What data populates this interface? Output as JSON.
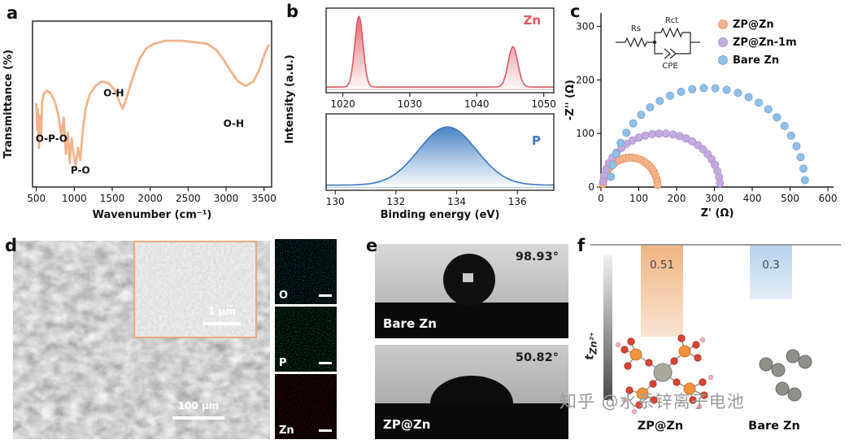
{
  "figure": {
    "panel_letters": [
      "a",
      "b",
      "c",
      "d",
      "e",
      "f"
    ],
    "watermark": "知乎 @水系锌离子电池"
  },
  "chart_data": [
    {
      "id": "ftir",
      "panel": "a",
      "type": "line",
      "xlabel": "Wavenumber (cm⁻¹)",
      "ylabel": "Transmittance (%)",
      "xlim": [
        450,
        3600
      ],
      "ylim": [
        0,
        110
      ],
      "xticks": [
        500,
        1000,
        1500,
        2000,
        2500,
        3000,
        3500
      ],
      "line_color": "#f1b28c",
      "points": [
        [
          500,
          55
        ],
        [
          512,
          38
        ],
        [
          522,
          52
        ],
        [
          535,
          26
        ],
        [
          548,
          47
        ],
        [
          562,
          34
        ],
        [
          575,
          56
        ],
        [
          600,
          62
        ],
        [
          640,
          64
        ],
        [
          690,
          62
        ],
        [
          740,
          57
        ],
        [
          790,
          48
        ],
        [
          830,
          34
        ],
        [
          860,
          46
        ],
        [
          890,
          22
        ],
        [
          915,
          36
        ],
        [
          940,
          16
        ],
        [
          965,
          32
        ],
        [
          990,
          22
        ],
        [
          1020,
          14
        ],
        [
          1050,
          26
        ],
        [
          1080,
          18
        ],
        [
          1110,
          36
        ],
        [
          1150,
          52
        ],
        [
          1200,
          61
        ],
        [
          1280,
          67
        ],
        [
          1360,
          70
        ],
        [
          1450,
          69
        ],
        [
          1540,
          64
        ],
        [
          1600,
          56
        ],
        [
          1640,
          52
        ],
        [
          1700,
          61
        ],
        [
          1780,
          74
        ],
        [
          1860,
          85
        ],
        [
          1950,
          92
        ],
        [
          2050,
          95
        ],
        [
          2200,
          97
        ],
        [
          2400,
          97
        ],
        [
          2600,
          96
        ],
        [
          2750,
          95
        ],
        [
          2870,
          91
        ],
        [
          2960,
          85
        ],
        [
          3060,
          77
        ],
        [
          3160,
          70
        ],
        [
          3260,
          67
        ],
        [
          3360,
          70
        ],
        [
          3440,
          78
        ],
        [
          3520,
          90
        ],
        [
          3560,
          94
        ]
      ],
      "annotations": [
        {
          "text": "O-P-O",
          "x": 700,
          "y": 30
        },
        {
          "text": "P-O",
          "x": 1080,
          "y": 9
        },
        {
          "text": "O-H",
          "x": 1520,
          "y": 60
        },
        {
          "text": "O-H",
          "x": 3100,
          "y": 40
        }
      ]
    },
    {
      "id": "xps",
      "panel": "b",
      "type": "line",
      "xlabel": "Binding energy (eV)",
      "ylabel": "Intensity (a.u.)",
      "subplots": [
        {
          "label": "Zn",
          "line_color": "#e05a62",
          "xlim": [
            1017.5,
            1051.5
          ],
          "xticks": [
            1020,
            1030,
            1040,
            1050
          ],
          "baseline": 7,
          "peaks": [
            {
              "center": 1022.4,
              "height": 88,
              "sigma": 0.62
            },
            {
              "center": 1045.4,
              "height": 50,
              "sigma": 0.72
            }
          ]
        },
        {
          "label": "P",
          "line_color": "#3a79c1",
          "xlim": [
            129.7,
            137.2
          ],
          "xticks": [
            130,
            132,
            134,
            136
          ],
          "baseline": 7,
          "peaks": [
            {
              "center": 133.7,
              "height": 80,
              "sigma": 0.95
            }
          ]
        }
      ]
    },
    {
      "id": "eis",
      "panel": "c",
      "type": "scatter",
      "xlabel": "Z' (Ω)",
      "ylabel": "-Z'' (Ω)",
      "xlim": [
        0,
        615
      ],
      "ylim": [
        0,
        325
      ],
      "xticks": [
        0,
        100,
        200,
        300,
        400,
        500,
        600
      ],
      "yticks": [
        0,
        100,
        200,
        300
      ],
      "series": [
        {
          "name": "ZP@Zn",
          "color": "#f5b48b",
          "edge": "#e59460",
          "rs": 5,
          "rct": 145,
          "depth": 55
        },
        {
          "name": "ZP@Zn-1m",
          "color": "#c3abdf",
          "edge": "#a98cc9",
          "rs": 5,
          "rct": 310,
          "depth": 100
        },
        {
          "name": "Bare Zn",
          "color": "#92bfe6",
          "edge": "#6da3d4",
          "rs": 25,
          "rct": 515,
          "depth": 185
        }
      ],
      "circuit": {
        "rs": "Rs",
        "rct": "Rct",
        "cpe": "CPE"
      }
    },
    {
      "id": "transference",
      "panel": "f",
      "type": "bar",
      "axis_label": "t",
      "axis_label_sub": "Zn²⁺",
      "bars": [
        {
          "name": "ZP@Zn",
          "value": 0.51,
          "color": "#f0b584"
        },
        {
          "name": "Bare Zn",
          "value": 0.3,
          "color": "#b5d2ed"
        }
      ]
    }
  ],
  "panel_d": {
    "scalebar_main": "100 μm",
    "scalebar_inset": "1 μm",
    "eds": [
      {
        "element": "O",
        "color": "#0e8183"
      },
      {
        "element": "P",
        "color": "#13a04a"
      },
      {
        "element": "Zn",
        "color": "#7f1113"
      }
    ]
  },
  "panel_e": {
    "samples": [
      {
        "name": "Bare Zn",
        "angle": "98.93°"
      },
      {
        "name": "ZP@Zn",
        "angle": "50.82°"
      }
    ]
  }
}
